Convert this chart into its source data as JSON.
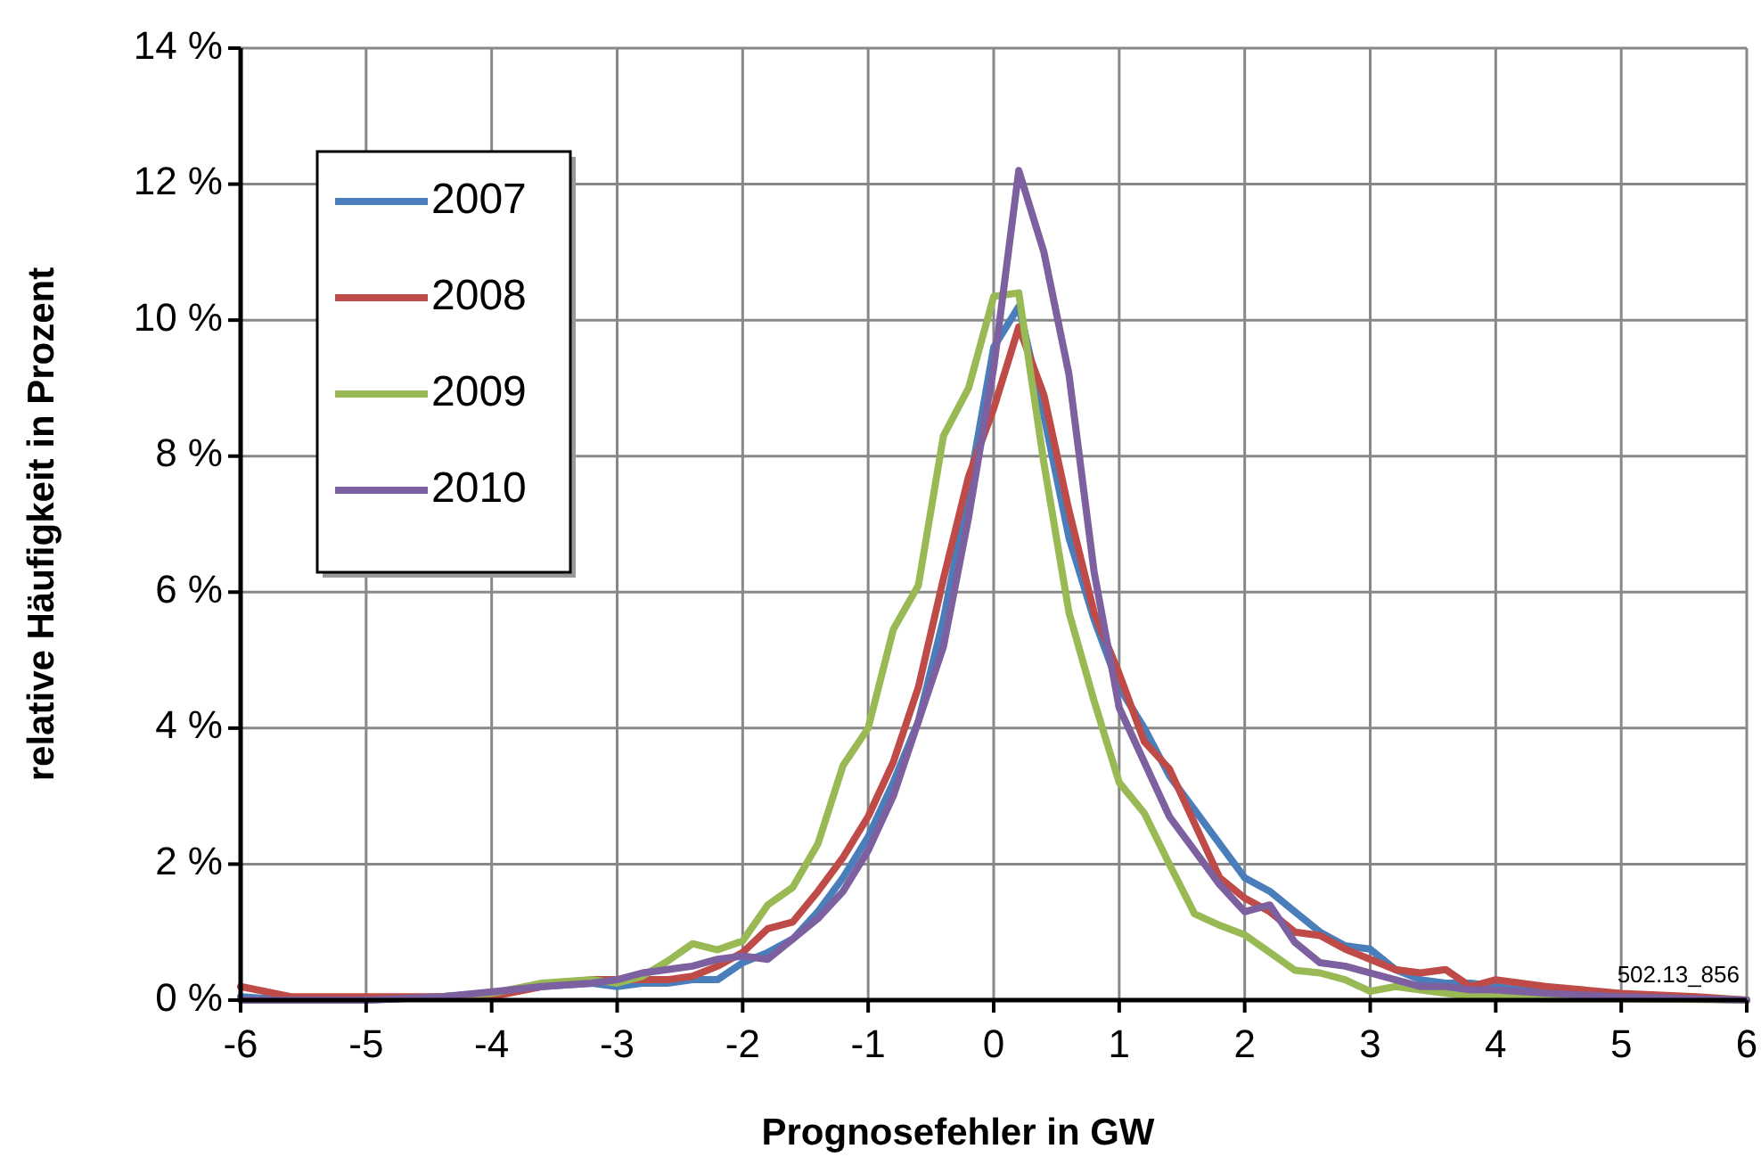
{
  "chart_data": {
    "type": "line",
    "xlabel": "Prognosefehler in GW",
    "ylabel": "relative Häufigkeit in Prozent",
    "x": [
      -6,
      -5.6,
      -5,
      -4.4,
      -4,
      -3.6,
      -3.2,
      -3,
      -2.8,
      -2.6,
      -2.4,
      -2.2,
      -2,
      -1.8,
      -1.6,
      -1.4,
      -1.2,
      -1,
      -0.8,
      -0.6,
      -0.4,
      -0.2,
      0,
      0.2,
      0.4,
      0.6,
      0.8,
      1,
      1.2,
      1.4,
      1.6,
      1.8,
      2,
      2.2,
      2.4,
      2.6,
      2.8,
      3,
      3.2,
      3.4,
      3.6,
      3.8,
      4,
      4.4,
      5,
      5.6,
      6
    ],
    "series": [
      {
        "name": "2007",
        "color": "#4a7ebb",
        "values": [
          0.05,
          0,
          0,
          0.05,
          0.1,
          0.2,
          0.25,
          0.2,
          0.25,
          0.25,
          0.3,
          0.3,
          0.55,
          0.7,
          0.9,
          1.3,
          1.8,
          2.4,
          3.2,
          4.1,
          5.6,
          7.5,
          9.6,
          10.2,
          8.6,
          6.8,
          5.6,
          4.6,
          4.0,
          3.3,
          2.8,
          2.3,
          1.8,
          1.6,
          1.3,
          1.0,
          0.8,
          0.75,
          0.45,
          0.3,
          0.25,
          0.25,
          0.2,
          0.15,
          0.05,
          null,
          null
        ]
      },
      {
        "name": "2008",
        "color": "#be4b48",
        "values": [
          0.2,
          0.05,
          0.05,
          0.05,
          0.05,
          0.2,
          0.3,
          0.3,
          0.3,
          0.3,
          0.35,
          0.5,
          0.7,
          1.05,
          1.15,
          1.6,
          2.1,
          2.7,
          3.5,
          4.6,
          6.2,
          7.7,
          8.7,
          9.9,
          8.9,
          7.2,
          5.7,
          4.8,
          3.8,
          3.4,
          2.6,
          1.8,
          1.5,
          1.3,
          1.0,
          0.95,
          0.75,
          0.6,
          0.45,
          0.4,
          0.45,
          0.2,
          0.3,
          0.2,
          0.1,
          0.05,
          0
        ]
      },
      {
        "name": "2009",
        "color": "#98b954",
        "values": [
          null,
          null,
          null,
          0.05,
          0.1,
          0.25,
          0.3,
          0.25,
          0.35,
          0.57,
          0.83,
          0.74,
          0.87,
          1.4,
          1.66,
          2.3,
          3.45,
          4.0,
          5.45,
          6.1,
          8.3,
          9.0,
          10.35,
          10.4,
          7.9,
          5.7,
          4.4,
          3.2,
          2.75,
          2.0,
          1.27,
          1.1,
          0.96,
          0.7,
          0.44,
          0.4,
          0.3,
          0.13,
          0.2,
          0.15,
          0.1,
          0.05,
          0.05,
          0.02,
          0.02,
          0.01,
          0
        ]
      },
      {
        "name": "2010",
        "color": "#7d60a0",
        "values": [
          0,
          0,
          0,
          0.05,
          0.12,
          0.2,
          0.25,
          0.3,
          0.4,
          0.45,
          0.5,
          0.6,
          0.65,
          0.6,
          0.9,
          1.2,
          1.6,
          2.2,
          3.0,
          4.1,
          5.2,
          7.1,
          9.3,
          12.2,
          11.0,
          9.2,
          6.3,
          4.3,
          3.5,
          2.7,
          2.2,
          1.7,
          1.3,
          1.4,
          0.85,
          0.55,
          0.5,
          0.4,
          0.3,
          0.2,
          0.2,
          0.15,
          0.15,
          0.1,
          0.05,
          0.02,
          0
        ]
      }
    ],
    "xlim": [
      -6,
      6
    ],
    "xticks": [
      -6,
      -5,
      -4,
      -3,
      -2,
      -1,
      0,
      1,
      2,
      3,
      4,
      5,
      6
    ],
    "ylim": [
      0,
      14
    ],
    "yticks": [
      {
        "value": 0,
        "label": "0 %"
      },
      {
        "value": 2,
        "label": "2 %"
      },
      {
        "value": 4,
        "label": "4 %"
      },
      {
        "value": 6,
        "label": "6 %"
      },
      {
        "value": 8,
        "label": "8 %"
      },
      {
        "value": 10,
        "label": "10 %"
      },
      {
        "value": 12,
        "label": "12 %"
      },
      {
        "value": 14,
        "label": "14 %"
      }
    ],
    "grid": true,
    "legend": "top left",
    "marker": "none",
    "line_style": "solid",
    "annotations": [
      "502.13_856"
    ]
  }
}
